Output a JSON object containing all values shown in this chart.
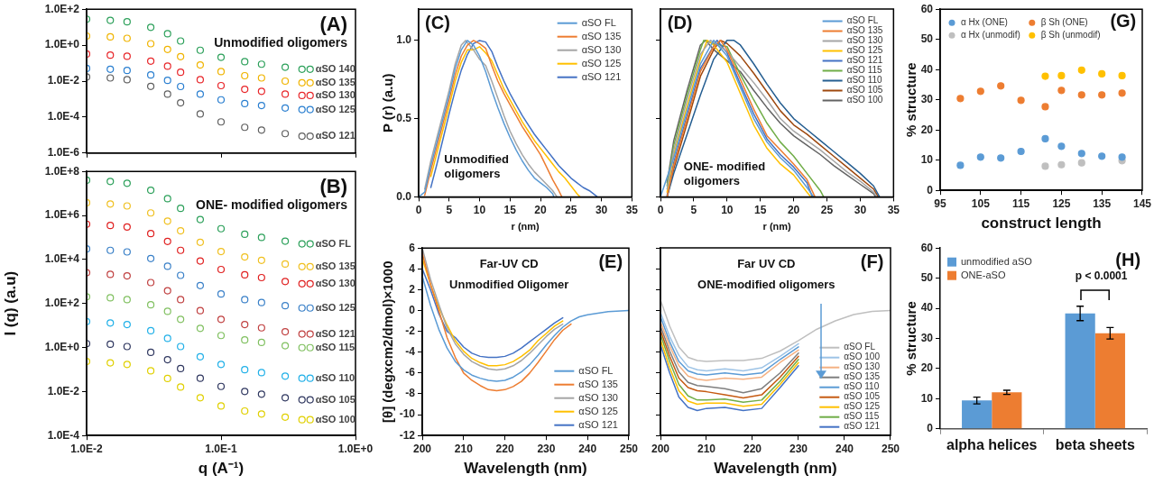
{
  "chart_data": [
    {
      "type": "scatter",
      "log": "xy",
      "xlim": [
        0.01,
        1
      ],
      "ylim": [
        1e-06,
        100
      ],
      "xticks": [
        {
          "value": 0.01,
          "label": null
        },
        {
          "value": 0.1,
          "label": null
        },
        {
          "value": 1,
          "label": null
        }
      ],
      "yticks": [
        {
          "value": 100,
          "label": "1.0E+2"
        },
        {
          "value": 1,
          "label": "1.0E+0"
        },
        {
          "value": 0.01,
          "label": "1.0E-2"
        },
        {
          "value": 0.0001,
          "label": "1.0E-4"
        },
        {
          "value": 1e-06,
          "label": "1.0E-6"
        }
      ],
      "tick_labels": "y",
      "marker": "circle",
      "legend": "right",
      "annotations": [
        "(A)",
        "Unmodified oligomers"
      ],
      "x": [
        0.01,
        0.015,
        0.02,
        0.03,
        0.04,
        0.05,
        0.07,
        0.1,
        0.15,
        0.2,
        0.3,
        0.4
      ],
      "series": [
        {
          "name": "αSO 140",
          "color": "#2ca05a",
          "values": [
            28,
            24,
            20,
            9.8,
            4.3,
            1.7,
            0.52,
            0.21,
            0.12,
            0.087,
            0.059,
            0.046
          ]
        },
        {
          "name": "αSO 135",
          "color": "#f0b400",
          "values": [
            3.2,
            2.9,
            2.4,
            1.2,
            0.58,
            0.23,
            0.079,
            0.034,
            0.02,
            0.015,
            0.01,
            0.0081
          ]
        },
        {
          "name": "αSO 130",
          "color": "#e8262a",
          "values": [
            0.32,
            0.28,
            0.24,
            0.13,
            0.068,
            0.031,
            0.012,
            0.0056,
            0.0035,
            0.0027,
            0.0019,
            0.0016
          ]
        },
        {
          "name": "αSO 125",
          "color": "#2a7fd0",
          "values": [
            0.051,
            0.046,
            0.039,
            0.022,
            0.011,
            0.005,
            0.0019,
            0.00091,
            0.00056,
            0.00044,
            0.00032,
            0.00026
          ]
        },
        {
          "name": "αSO 121",
          "color": "#606060",
          "values": [
            0.017,
            0.015,
            0.012,
            0.0051,
            0.0019,
            0.00062,
            0.00015,
            5.4e-05,
            2.7e-05,
            1.9e-05,
            1.2e-05,
            8.7e-06
          ]
        }
      ]
    },
    {
      "type": "scatter",
      "log": "xy",
      "xlim": [
        0.01,
        1
      ],
      "ylim": [
        0.0001,
        100000000
      ],
      "xticks": [
        {
          "value": 0.01,
          "label": "1.0E-2"
        },
        {
          "value": 0.1,
          "label": "1.0E-1"
        },
        {
          "value": 1,
          "label": "1.0E+0"
        }
      ],
      "yticks": [
        {
          "value": 100000000,
          "label": "1.0E+8"
        },
        {
          "value": 1000000,
          "label": "1.0E+6"
        },
        {
          "value": 10000,
          "label": "1.0E+4"
        },
        {
          "value": 100,
          "label": "1.0E+2"
        },
        {
          "value": 1,
          "label": "1.0E+0"
        },
        {
          "value": 0.01,
          "label": "1.0E-2"
        },
        {
          "value": 0.0001,
          "label": "1.0E-4"
        }
      ],
      "xlabel": "q (A⁻¹)",
      "ylabel": "I (q) (a.u)",
      "marker": "circle",
      "legend": "right",
      "annotations": [
        "(B)",
        "ONE- modified oligomers"
      ],
      "x": [
        0.01,
        0.015,
        0.02,
        0.03,
        0.04,
        0.05,
        0.07,
        0.1,
        0.15,
        0.2,
        0.3,
        0.4
      ],
      "series": [
        {
          "name": "αSO FL",
          "color": "#2ca05a",
          "values": [
            40000000,
            35000000,
            29000000,
            14000000,
            5800000,
            2100000,
            650000,
            250000,
            140000,
            100000,
            68000,
            51000
          ]
        },
        {
          "name": "αSO 135",
          "color": "#f0c020",
          "values": [
            3800000,
            3300000,
            2700000,
            1300000,
            550000,
            200000,
            60000,
            23000,
            13000,
            9100,
            6200,
            4700
          ]
        },
        {
          "name": "αSO 130",
          "color": "#e02020",
          "values": [
            400000,
            350000,
            300000,
            150000,
            66000,
            26000,
            8500,
            3500,
            2000,
            1500,
            1000,
            790
          ]
        },
        {
          "name": "αSO 125",
          "color": "#3a80c8",
          "values": [
            30000,
            26000,
            22000,
            11000,
            4900,
            1900,
            650,
            270,
            150,
            110,
            79,
            62
          ]
        },
        {
          "name": "αSO 121",
          "color": "#c04040",
          "values": [
            2500,
            2100,
            1800,
            890,
            380,
            150,
            47,
            19,
            11,
            7.8,
            5.2,
            4.1
          ]
        },
        {
          "name": "αSO 115",
          "color": "#80c060",
          "values": [
            200,
            180,
            150,
            87,
            44,
            19,
            7.4,
            3.5,
            2.2,
            1.7,
            1.2,
            0.98
          ]
        },
        {
          "name": "αSO 110",
          "color": "#20b0e8",
          "values": [
            15,
            13,
            11,
            5.8,
            2.6,
            1.1,
            0.38,
            0.17,
            0.098,
            0.072,
            0.05,
            0.04
          ]
        },
        {
          "name": "αSO 105",
          "color": "#303860",
          "values": [
            1.5,
            1.4,
            1.1,
            0.6,
            0.28,
            0.11,
            0.04,
            0.017,
            0.01,
            0.0076,
            0.0052,
            0.0042
          ]
        },
        {
          "name": "αSO 100",
          "color": "#e0d000",
          "values": [
            0.23,
            0.2,
            0.17,
            0.087,
            0.039,
            0.016,
            0.0052,
            0.0022,
            0.0013,
            0.00095,
            0.00068,
            0.00052
          ]
        }
      ]
    },
    {
      "type": "line",
      "xlim": [
        0,
        35
      ],
      "ylim": [
        0,
        1.2
      ],
      "xticks": [
        0,
        5,
        10,
        15,
        20,
        25,
        30,
        35
      ],
      "yticks": [
        {
          "value": 0,
          "label": "0.0"
        },
        {
          "value": 0.5,
          "label": "0.5"
        },
        {
          "value": 1,
          "label": "1.0"
        }
      ],
      "xlabel": "r (nm)",
      "ylabel": "P (r) (a.u)",
      "marker": "none",
      "line_style": "solid",
      "legend": "top right",
      "annotations": [
        "(C)",
        "Unmodified oligomers"
      ],
      "series": [
        {
          "name": "αSO FL",
          "color": "#5b9bd5",
          "x": [
            0,
            1,
            2,
            3,
            4,
            5,
            6,
            7,
            8,
            9,
            10,
            11,
            12,
            13,
            14,
            15,
            16,
            17,
            18,
            19,
            20,
            21,
            22,
            22.2
          ],
          "values": [
            0,
            0.03,
            0.2,
            0.35,
            0.5,
            0.65,
            0.82,
            0.94,
            1,
            0.97,
            0.9,
            0.8,
            0.68,
            0.57,
            0.47,
            0.38,
            0.3,
            0.23,
            0.17,
            0.12,
            0.09,
            0.06,
            0.02,
            0
          ]
        },
        {
          "name": "αSO 135",
          "color": "#ed7d31",
          "x": [
            1,
            2,
            3,
            4,
            5,
            6,
            7,
            8,
            9,
            10,
            11,
            12,
            13,
            14,
            15,
            16,
            17,
            18,
            19,
            20,
            21,
            22,
            23,
            23.5
          ],
          "values": [
            0.01,
            0.17,
            0.32,
            0.47,
            0.62,
            0.78,
            0.9,
            0.97,
            1,
            0.98,
            0.95,
            0.84,
            0.74,
            0.66,
            0.59,
            0.52,
            0.45,
            0.39,
            0.33,
            0.27,
            0.19,
            0.11,
            0.04,
            0
          ]
        },
        {
          "name": "αSO 130",
          "color": "#a5a5a5",
          "x": [
            1,
            2,
            3,
            4,
            5,
            6,
            7,
            7.7,
            9,
            10,
            11,
            12,
            13,
            14,
            15,
            16,
            17,
            18,
            19,
            20,
            21,
            22,
            22.7
          ],
          "values": [
            0.05,
            0.23,
            0.38,
            0.53,
            0.68,
            0.85,
            0.97,
            1,
            0.94,
            0.88,
            0.84,
            0.74,
            0.63,
            0.52,
            0.42,
            0.34,
            0.27,
            0.21,
            0.16,
            0.12,
            0.08,
            0.04,
            0
          ]
        },
        {
          "name": "αSO 125",
          "color": "#ffc000",
          "x": [
            2,
            3,
            4,
            5,
            6,
            7,
            8,
            9,
            10,
            11,
            12,
            13,
            14,
            15,
            16,
            17,
            18,
            19,
            20,
            21,
            22,
            23,
            24,
            25,
            26,
            26.5
          ],
          "values": [
            0.13,
            0.28,
            0.43,
            0.58,
            0.74,
            0.86,
            0.94,
            0.94,
            0.96,
            0.92,
            0.87,
            0.78,
            0.69,
            0.62,
            0.55,
            0.48,
            0.42,
            0.36,
            0.31,
            0.26,
            0.21,
            0.16,
            0.12,
            0.07,
            0.02,
            0
          ]
        },
        {
          "name": "αSO 121",
          "color": "#4472c4",
          "x": [
            2,
            3,
            4,
            5,
            6,
            7,
            8,
            9,
            10,
            11,
            12,
            13,
            14,
            15,
            16,
            17,
            18,
            19,
            20,
            21,
            22,
            23,
            24,
            25,
            26,
            27,
            28,
            29,
            29.3
          ],
          "values": [
            0.06,
            0.21,
            0.37,
            0.53,
            0.68,
            0.81,
            0.91,
            0.98,
            1,
            0.99,
            0.93,
            0.83,
            0.74,
            0.66,
            0.59,
            0.52,
            0.46,
            0.4,
            0.35,
            0.3,
            0.25,
            0.2,
            0.16,
            0.12,
            0.09,
            0.06,
            0.04,
            0.01,
            0
          ]
        }
      ]
    },
    {
      "type": "line",
      "xlim": [
        0,
        35
      ],
      "ylim": [
        0,
        1.2
      ],
      "xticks": [
        0,
        5,
        10,
        15,
        20,
        25,
        30,
        35
      ],
      "yticks": [
        0,
        0.5,
        1
      ],
      "tick_labels": "x",
      "xlabel": "r (nm)",
      "marker": "none",
      "line_style": "solid",
      "legend": "top right",
      "annotations": [
        "(D)",
        "ONE- modified oligomers"
      ],
      "series": [
        {
          "name": "αSO FL",
          "color": "#5b9bd5",
          "x": [
            0,
            2,
            4,
            6,
            8,
            10,
            12,
            14,
            16,
            18,
            20,
            22,
            23
          ],
          "values": [
            0,
            0.25,
            0.55,
            0.85,
            1,
            0.9,
            0.7,
            0.5,
            0.35,
            0.25,
            0.17,
            0.06,
            0
          ]
        },
        {
          "name": "αSO 135",
          "color": "#ed7d31",
          "x": [
            1,
            2,
            4,
            6,
            8,
            9,
            10,
            12,
            14,
            16,
            18,
            20,
            22,
            23.2
          ],
          "values": [
            0,
            0.2,
            0.5,
            0.8,
            0.96,
            1,
            0.94,
            0.75,
            0.56,
            0.39,
            0.3,
            0.21,
            0.11,
            0
          ]
        },
        {
          "name": "αSO 130",
          "color": "#a5a5a5",
          "x": [
            1,
            2,
            4,
            6,
            7.5,
            10,
            12,
            14,
            16,
            18,
            20,
            22,
            24,
            26,
            28,
            30,
            32,
            32.5
          ],
          "values": [
            0.05,
            0.3,
            0.62,
            0.91,
            1,
            0.93,
            0.83,
            0.73,
            0.62,
            0.5,
            0.42,
            0.36,
            0.3,
            0.23,
            0.16,
            0.1,
            0.03,
            0
          ]
        },
        {
          "name": "αSO 125",
          "color": "#ffc000",
          "x": [
            1,
            2,
            4,
            6,
            7,
            8,
            10,
            12,
            14,
            16,
            18,
            20,
            22,
            22.6
          ],
          "values": [
            0.03,
            0.27,
            0.58,
            0.88,
            1,
            0.97,
            0.86,
            0.66,
            0.46,
            0.31,
            0.21,
            0.14,
            0.03,
            0
          ]
        },
        {
          "name": "αSO 121",
          "color": "#4472c4",
          "x": [
            1,
            2,
            4,
            6,
            8.5,
            10,
            12,
            14,
            16,
            18,
            20,
            22,
            22.8
          ],
          "values": [
            0.01,
            0.22,
            0.52,
            0.82,
            1,
            0.92,
            0.72,
            0.53,
            0.37,
            0.27,
            0.19,
            0.09,
            0
          ]
        },
        {
          "name": "αSO 115",
          "color": "#70ad47",
          "x": [
            1,
            2,
            4,
            6,
            6.5,
            8,
            10,
            12,
            14,
            16,
            18,
            20,
            22,
            24,
            24.5
          ],
          "values": [
            0.07,
            0.33,
            0.65,
            0.94,
            1,
            0.98,
            0.96,
            0.78,
            0.62,
            0.47,
            0.35,
            0.26,
            0.15,
            0.04,
            0
          ]
        },
        {
          "name": "αSO 110",
          "color": "#255e91",
          "x": [
            1,
            2,
            4,
            6,
            8,
            10,
            11,
            12,
            14,
            16,
            18,
            20,
            22,
            24,
            26,
            28,
            30,
            32,
            32.9
          ],
          "values": [
            0,
            0.15,
            0.4,
            0.65,
            0.88,
            1,
            1,
            0.97,
            0.85,
            0.72,
            0.6,
            0.5,
            0.43,
            0.36,
            0.29,
            0.22,
            0.15,
            0.07,
            0
          ]
        },
        {
          "name": "αSO 105",
          "color": "#9e480e",
          "x": [
            1,
            2,
            4,
            6,
            8,
            9,
            10,
            12,
            14,
            16,
            18,
            20,
            22,
            24,
            26,
            28,
            30,
            32,
            32.7
          ],
          "values": [
            0,
            0.18,
            0.47,
            0.77,
            0.94,
            1,
            0.98,
            0.9,
            0.79,
            0.67,
            0.55,
            0.46,
            0.4,
            0.33,
            0.26,
            0.19,
            0.12,
            0.05,
            0
          ]
        },
        {
          "name": "αSO 100",
          "color": "#636363",
          "x": [
            1,
            2,
            4,
            6,
            6.8,
            8,
            10,
            12,
            14,
            16,
            18,
            20,
            22,
            24,
            26,
            28,
            30,
            32,
            32.3
          ],
          "values": [
            0.09,
            0.36,
            0.68,
            0.97,
            1,
            0.94,
            0.87,
            0.8,
            0.68,
            0.57,
            0.47,
            0.39,
            0.33,
            0.27,
            0.2,
            0.14,
            0.08,
            0.02,
            0
          ]
        }
      ]
    },
    {
      "type": "line",
      "xlim": [
        200,
        250
      ],
      "ylim": [
        -12,
        6
      ],
      "xticks": [
        200,
        210,
        220,
        230,
        240,
        250
      ],
      "yticks": [
        -12,
        -10,
        -8,
        -6,
        -4,
        -2,
        0,
        2,
        4,
        6
      ],
      "xlabel": "Wavelength (nm)",
      "ylabel": "[θ] (degxcm2/dmol)×1000",
      "marker": "none",
      "line_style": "solid",
      "legend": "bottom right",
      "annotations": [
        "Far-UV CD",
        "Unmodified Oligomer",
        "(E)"
      ],
      "x": [
        200,
        202,
        204,
        206,
        208,
        210,
        212,
        214,
        216,
        218,
        220,
        222,
        224,
        226,
        228,
        230,
        232,
        234,
        236,
        238,
        240,
        245,
        250
      ],
      "series": [
        {
          "name": "αSO FL",
          "color": "#5b9bd5",
          "values": [
            3.3,
            0.5,
            -1.8,
            -3.6,
            -4.9,
            -5.7,
            -6.2,
            -6.5,
            -6.7,
            -6.8,
            -6.7,
            -6.4,
            -5.9,
            -5.2,
            -4.3,
            -3.3,
            -2.4,
            -1.6,
            -1,
            -0.6,
            -0.4,
            -0.1,
            0
          ]
        },
        {
          "name": "αSO 135",
          "color": "#ed7d31",
          "values": [
            5.5,
            2.5,
            0,
            -2.6,
            -4.5,
            -6,
            -6.7,
            -7.2,
            -7.6,
            -7.7,
            -7.6,
            -7.3,
            -6.8,
            -6,
            -5,
            -3.9,
            -2.8,
            -1.9,
            -1.3,
            null,
            null,
            null,
            null
          ]
        },
        {
          "name": "αSO 130",
          "color": "#a5a5a5",
          "values": [
            6,
            3,
            0.6,
            -1.7,
            -3.2,
            -4.2,
            -4.9,
            -5.3,
            -5.6,
            -5.7,
            -5.6,
            -5.3,
            -4.8,
            -4.1,
            -3.3,
            -2.5,
            -1.8,
            -1.3,
            null,
            null,
            null,
            null,
            null
          ]
        },
        {
          "name": "αSO 125",
          "color": "#ffc000",
          "values": [
            5,
            2.5,
            0.3,
            -1.4,
            -2.9,
            -3.9,
            -4.6,
            -5,
            -5.3,
            -5.3,
            -5.2,
            -4.9,
            -4.4,
            -3.8,
            -2.9,
            -2.2,
            -1.5,
            -1,
            null,
            null,
            null,
            null,
            null
          ]
        },
        {
          "name": "αSO 121",
          "color": "#4472c4",
          "values": [
            4,
            2,
            -0.3,
            -2,
            -2.6,
            -3.5,
            -4.1,
            -4.4,
            -4.5,
            -4.5,
            -4.4,
            -4.1,
            -3.6,
            -3,
            -2.4,
            -1.8,
            -1.2,
            -0.7,
            null,
            null,
            null,
            null,
            null
          ]
        }
      ]
    },
    {
      "type": "line",
      "xlim": [
        200,
        250
      ],
      "ylim": [
        -12,
        6
      ],
      "xticks": [
        200,
        210,
        220,
        230,
        240,
        250
      ],
      "yticks": [
        -12,
        -10,
        -8,
        -6,
        -4,
        -2,
        0,
        2,
        4,
        6
      ],
      "tick_labels": "x",
      "xlabel": "Wavelength (nm)",
      "marker": "none",
      "line_style": "solid",
      "legend": "bottom right",
      "annotations": [
        "Far UV CD",
        "ONE-modified oligomers",
        "(F)"
      ],
      "x": [
        200,
        202,
        204,
        206,
        208,
        210,
        214,
        218,
        222,
        226,
        230,
        234,
        238,
        242,
        246,
        250
      ],
      "series": [
        {
          "name": "αSO FL",
          "color": "#bfbfbf",
          "values": [
            1,
            -1.5,
            -3.5,
            -4.5,
            -4.8,
            -4.9,
            -4.8,
            -4.8,
            -4.6,
            -3.9,
            -2.9,
            -1.8,
            -1,
            -0.4,
            -0.1,
            0
          ]
        },
        {
          "name": "αSO 100",
          "color": "#9dc3e6",
          "values": [
            -0.2,
            -2.5,
            -4.3,
            -5.4,
            -5.7,
            -5.8,
            -5.6,
            -5.8,
            -5.5,
            -4.4,
            -3.2,
            null,
            null,
            null,
            null,
            null
          ]
        },
        {
          "name": "αSO 130",
          "color": "#f4b183",
          "values": [
            -1.1,
            -3.4,
            -5.3,
            -6.3,
            -6.6,
            -6.7,
            -6.5,
            -6.6,
            -6.4,
            -5,
            -3.8,
            null,
            null,
            null,
            null,
            null
          ]
        },
        {
          "name": "αSO 135",
          "color": "#7f7f7f",
          "values": [
            -1.5,
            -3.9,
            -5.9,
            -6.9,
            -7.2,
            -7.3,
            -7.5,
            -7.9,
            -7.5,
            -6,
            -4.1,
            null,
            null,
            null,
            null,
            null
          ]
        },
        {
          "name": "αSO 110",
          "color": "#5b9bd5",
          "values": [
            -0.6,
            -3,
            -4.9,
            -5.8,
            -6.1,
            -6.2,
            -6,
            -6.2,
            -6,
            -4.7,
            -3.5,
            null,
            null,
            null,
            null,
            null
          ]
        },
        {
          "name": "αSO 105",
          "color": "#c55a11",
          "values": [
            -1.9,
            -4.4,
            -6.5,
            -7.4,
            -7.7,
            -7.8,
            -8.1,
            -8.4,
            -8.1,
            -6.4,
            -4.4,
            null,
            null,
            null,
            null,
            null
          ]
        },
        {
          "name": "αSO 125",
          "color": "#ffc000",
          "values": [
            -2.8,
            -5.5,
            -7.7,
            -8.7,
            -9,
            -8.9,
            -8.9,
            -9.2,
            -9,
            -7.1,
            -5,
            null,
            null,
            null,
            null,
            null
          ]
        },
        {
          "name": "αSO 115",
          "color": "#70ad47",
          "values": [
            -2.3,
            -4.9,
            -7.1,
            -8.2,
            -8.6,
            -8.6,
            -8.5,
            -8.8,
            -8.6,
            -6.8,
            -4.7,
            null,
            null,
            null,
            null,
            null
          ]
        },
        {
          "name": "αSO 121",
          "color": "#4472c4",
          "values": [
            -3.3,
            -6,
            -8.3,
            -9.3,
            -9.6,
            -9.4,
            -9.3,
            -9.6,
            -9.4,
            -7.4,
            -5.3,
            null,
            null,
            null,
            null,
            null
          ]
        }
      ]
    },
    {
      "type": "scatter",
      "xlim": [
        95,
        145
      ],
      "ylim": [
        0,
        60
      ],
      "xticks": [
        95,
        105,
        115,
        125,
        135,
        145
      ],
      "yticks": [
        0,
        10,
        20,
        30,
        40,
        50,
        60
      ],
      "xlabel": "construct length",
      "ylabel": "% structure",
      "marker": "circle",
      "legend": "top",
      "annotations": [
        "(G)"
      ],
      "series": [
        {
          "name": "α Hx (ONE)",
          "color": "#5b9bd5",
          "x": [
            100,
            105,
            110,
            115,
            121,
            125,
            130,
            135,
            140
          ],
          "values": [
            8.3,
            11,
            10.7,
            12.9,
            17.1,
            14.6,
            12.2,
            11.3,
            11
          ]
        },
        {
          "name": "β Sh (ONE)",
          "color": "#ed7d31",
          "x": [
            100,
            105,
            110,
            115,
            121,
            125,
            130,
            135,
            140
          ],
          "values": [
            30.4,
            32.8,
            34.6,
            29.8,
            27.7,
            33.1,
            31.6,
            31.6,
            32.2
          ]
        },
        {
          "name": "α Hx (unmodif)",
          "color": "#bfbfbf",
          "x": [
            121,
            125,
            130,
            135,
            140
          ],
          "values": [
            8,
            8.5,
            9.1,
            null,
            9.8
          ]
        },
        {
          "name": "β Sh (unmodif)",
          "color": "#ffc000",
          "x": [
            121,
            125,
            130,
            135,
            140
          ],
          "values": [
            37.8,
            38,
            39.8,
            38.6,
            38
          ]
        }
      ]
    },
    {
      "type": "bar",
      "categories": [
        "alpha helices",
        "beta sheets"
      ],
      "ylim": [
        0,
        60
      ],
      "yticks": [
        0,
        10,
        20,
        30,
        40,
        50,
        60
      ],
      "ylabel": "% structure",
      "legend": "top left",
      "annotations": [
        "(H)",
        "p < 0.0001"
      ],
      "series": [
        {
          "name": "unmodified aSO",
          "color": "#5b9bd5",
          "values": [
            9.4,
            38.3
          ],
          "errors": [
            1.1,
            2.4
          ]
        },
        {
          "name": "ONE-aSO",
          "color": "#ed7d31",
          "values": [
            12.1,
            31.7
          ],
          "errors": [
            0.7,
            1.9
          ]
        }
      ]
    }
  ]
}
